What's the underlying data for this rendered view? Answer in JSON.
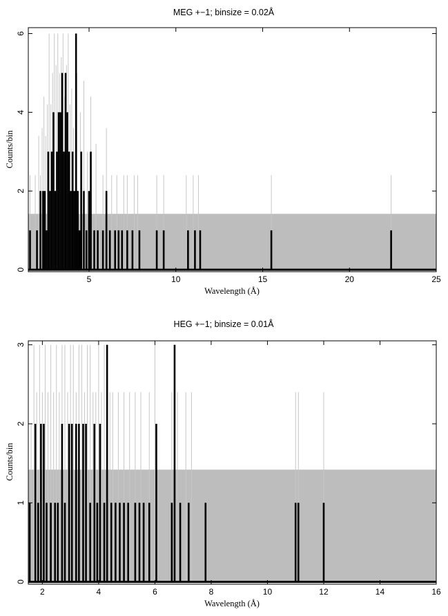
{
  "colors": {
    "band": "#bdbdbd",
    "ghost": "#c6c6c6",
    "data": "#000000",
    "frame": "#000000"
  },
  "chart_data": [
    {
      "type": "histogram",
      "title": "MEG +−1; binsize = 0.02Å",
      "xlabel": "Wavelength (Å)",
      "ylabel": "Counts/bin",
      "xlim": [
        1.5,
        25
      ],
      "ylim": [
        -0.05,
        6.15
      ],
      "xticks": [
        5,
        10,
        15,
        20,
        25
      ],
      "yticks": [
        0,
        2,
        4,
        6
      ],
      "x_tick_labels": [
        "5",
        "10",
        "15",
        "20",
        "25"
      ],
      "y_tick_labels": [
        "0",
        "2",
        "4",
        "6"
      ],
      "background_level": 1.42,
      "series": [
        {
          "role": "faint-grey-background-spectrum",
          "x": [
            1.6,
            1.9,
            2.1,
            2.2,
            2.3,
            2.4,
            2.5,
            2.6,
            2.7,
            2.8,
            2.9,
            3.0,
            3.1,
            3.2,
            3.3,
            3.4,
            3.5,
            3.6,
            3.7,
            3.8,
            3.9,
            4.0,
            4.1,
            4.3,
            4.5,
            4.7,
            4.9,
            5.1,
            5.4,
            5.8,
            6.0,
            6.3,
            6.6,
            7.0,
            7.2,
            7.6,
            7.8,
            8.9,
            9.3,
            10.6,
            11.0,
            11.3,
            15.5,
            22.4
          ],
          "values": [
            2.4,
            2.4,
            3.4,
            2.4,
            3.6,
            4.4,
            3.4,
            4.2,
            6.0,
            4.2,
            5.0,
            6.0,
            5.2,
            6.0,
            5.0,
            5.4,
            6.0,
            4.4,
            5.2,
            6.0,
            4.2,
            4.6,
            3.6,
            5.0,
            4.0,
            4.8,
            3.0,
            4.4,
            3.2,
            2.4,
            3.6,
            2.4,
            2.4,
            2.4,
            2.4,
            2.4,
            2.4,
            2.4,
            2.4,
            2.4,
            2.4,
            2.4,
            2.4,
            2.4
          ]
        },
        {
          "role": "observed-counts",
          "x": [
            1.6,
            2.0,
            2.2,
            2.35,
            2.45,
            2.55,
            2.65,
            2.75,
            2.85,
            2.95,
            3.05,
            3.15,
            3.25,
            3.35,
            3.45,
            3.55,
            3.65,
            3.75,
            3.85,
            3.95,
            4.05,
            4.15,
            4.25,
            4.35,
            4.45,
            4.55,
            4.7,
            4.85,
            5.0,
            5.1,
            5.3,
            5.5,
            5.8,
            6.0,
            6.2,
            6.5,
            6.7,
            6.9,
            7.2,
            7.5,
            7.9,
            8.9,
            9.3,
            10.7,
            11.1,
            11.4,
            15.5,
            22.4
          ],
          "values": [
            1,
            1,
            2,
            2,
            2,
            1,
            3,
            2,
            3,
            4,
            2,
            3,
            4,
            4,
            5,
            3,
            5,
            4,
            3,
            2,
            3,
            2,
            6,
            2,
            1,
            3,
            2,
            1,
            2,
            3,
            1,
            1,
            1,
            2,
            1,
            1,
            1,
            1,
            1,
            1,
            1,
            1,
            1,
            1,
            1,
            1,
            1,
            1
          ]
        }
      ]
    },
    {
      "type": "histogram",
      "title": "HEG +−1; binsize = 0.01Å",
      "xlabel": "Wavelength (Å)",
      "ylabel": "Counts/bin",
      "xlim": [
        1.5,
        16
      ],
      "ylim": [
        -0.03,
        3.05
      ],
      "xticks": [
        2,
        4,
        6,
        8,
        10,
        12,
        14,
        16
      ],
      "yticks": [
        0,
        1,
        2,
        3
      ],
      "x_tick_labels": [
        "2",
        "4",
        "6",
        "8",
        "10",
        "12",
        "14",
        "16"
      ],
      "y_tick_labels": [
        "0",
        "1",
        "2",
        "3"
      ],
      "background_level": 1.42,
      "series": [
        {
          "role": "faint-grey-background-spectrum",
          "x": [
            1.6,
            1.7,
            1.8,
            1.9,
            2.0,
            2.1,
            2.2,
            2.3,
            2.4,
            2.5,
            2.6,
            2.7,
            2.8,
            2.9,
            3.0,
            3.1,
            3.2,
            3.3,
            3.4,
            3.5,
            3.6,
            3.7,
            3.8,
            3.9,
            4.0,
            4.1,
            4.2,
            4.3,
            4.4,
            4.5,
            4.7,
            4.9,
            5.1,
            5.3,
            5.5,
            5.8,
            6.0,
            6.6,
            6.8,
            7.1,
            7.3,
            11.0,
            11.1,
            12.0
          ],
          "values": [
            2.0,
            3.0,
            2.4,
            3.0,
            2.4,
            3.0,
            2.4,
            3.0,
            2.4,
            3.0,
            2.4,
            3.0,
            3.0,
            2.4,
            3.0,
            3.0,
            2.4,
            3.0,
            3.0,
            2.4,
            3.0,
            3.0,
            2.4,
            2.4,
            3.0,
            2.4,
            3.0,
            2.4,
            2.4,
            2.4,
            2.4,
            2.4,
            2.4,
            2.4,
            2.4,
            2.4,
            3.0,
            2.4,
            2.4,
            2.4,
            2.4,
            2.4,
            2.4,
            2.4
          ]
        },
        {
          "role": "observed-counts",
          "x": [
            1.55,
            1.75,
            1.85,
            1.95,
            2.05,
            2.15,
            2.3,
            2.45,
            2.55,
            2.7,
            2.8,
            2.95,
            3.05,
            3.2,
            3.3,
            3.45,
            3.55,
            3.7,
            3.85,
            3.95,
            4.05,
            4.2,
            4.3,
            4.45,
            4.6,
            4.75,
            4.9,
            5.05,
            5.3,
            5.45,
            5.6,
            5.8,
            6.05,
            6.6,
            6.7,
            6.9,
            7.2,
            7.8,
            11.0,
            11.1,
            12.0
          ],
          "values": [
            1,
            2,
            1,
            2,
            2,
            1,
            1,
            1,
            1,
            2,
            1,
            2,
            2,
            2,
            2,
            2,
            2,
            1,
            2,
            1,
            2,
            1,
            3,
            1,
            1,
            1,
            1,
            1,
            1,
            1,
            1,
            1,
            2,
            1,
            3,
            1,
            1,
            1,
            1,
            1,
            1
          ]
        }
      ]
    }
  ]
}
